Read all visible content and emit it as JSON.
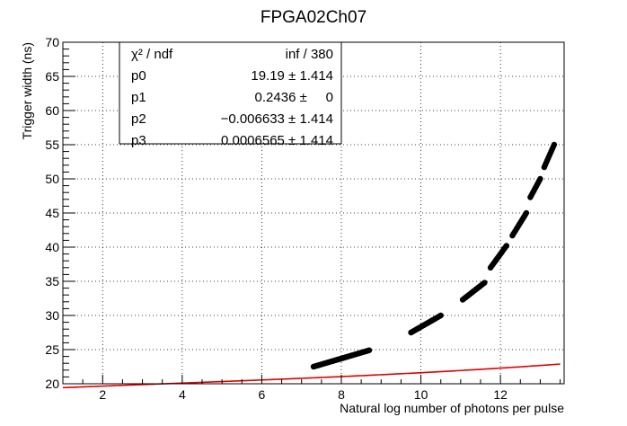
{
  "chart_data": {
    "type": "scatter",
    "title": "FPGA02Ch07",
    "xlabel": "Natural log number of photons per pulse",
    "ylabel": "Trigger width (ns)",
    "xlim": [
      1.0,
      13.6
    ],
    "ylim": [
      20,
      70
    ],
    "x_ticks": [
      2,
      4,
      6,
      8,
      10,
      12
    ],
    "y_ticks": [
      20,
      25,
      30,
      35,
      40,
      45,
      50,
      55,
      60,
      65,
      70
    ],
    "grid": true,
    "stats_box": {
      "rows": [
        {
          "label": "χ² / ndf",
          "value": "inf / 380"
        },
        {
          "label": "p0",
          "value": "19.19 ± 1.414"
        },
        {
          "label": "p1",
          "value": "0.2436 ±     0"
        },
        {
          "label": "p2",
          "value": "−0.006633 ± 1.414"
        },
        {
          "label": "p3",
          "value": "0.0006565 ± 1.414"
        }
      ]
    },
    "fit": {
      "function": "pol3",
      "coefficients": [
        19.19,
        0.2436,
        -0.006633,
        0.0006565
      ],
      "x_range": [
        1.0,
        13.5
      ],
      "color": "#e00000"
    },
    "data_segments": [
      {
        "x": [
          7.3,
          8.7
        ],
        "y": [
          22.5,
          24.9
        ]
      },
      {
        "x": [
          9.75,
          10.5
        ],
        "y": [
          27.5,
          30.0
        ]
      },
      {
        "x": [
          11.05,
          11.6
        ],
        "y": [
          32.3,
          34.8
        ]
      },
      {
        "x": [
          11.75,
          12.15
        ],
        "y": [
          37.0,
          40.2
        ]
      },
      {
        "x": [
          12.3,
          12.65
        ],
        "y": [
          41.7,
          45.0
        ]
      },
      {
        "x": [
          12.75,
          13.0
        ],
        "y": [
          47.3,
          50.0
        ]
      },
      {
        "x": [
          13.1,
          13.35
        ],
        "y": [
          51.7,
          55.0
        ]
      }
    ],
    "marker_color": "#000000"
  }
}
